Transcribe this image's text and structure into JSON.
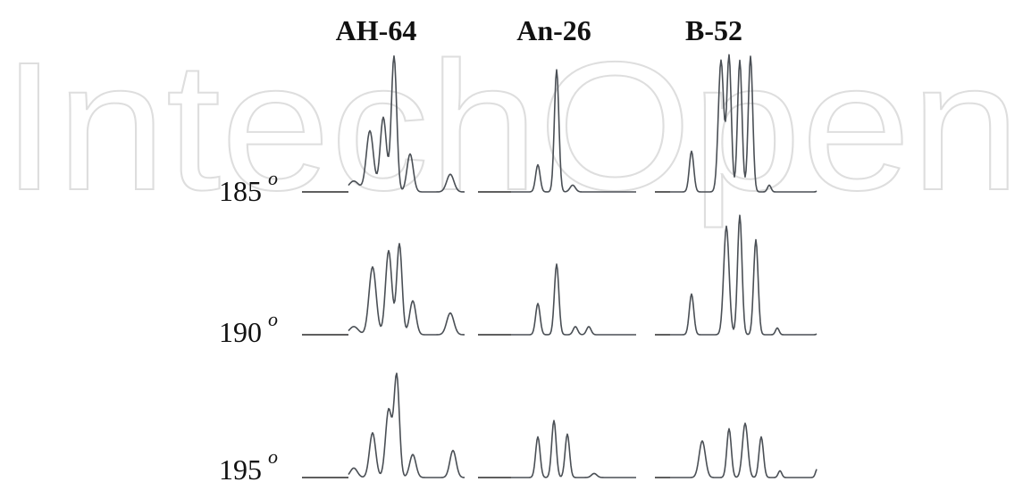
{
  "watermark": {
    "text": "IntechOpen",
    "color": "#e4e4e4"
  },
  "chart_data": {
    "type": "line",
    "columns": [
      "AH-64",
      "An-26",
      "B-52"
    ],
    "rows": [
      {
        "angle": "185",
        "degree_mark": "o"
      },
      {
        "angle": "190",
        "degree_mark": "o"
      },
      {
        "angle": "195",
        "degree_mark": "o"
      }
    ],
    "axes_shown": false,
    "grid": false,
    "series": [
      {
        "row": 0,
        "column": 0,
        "peaks": [
          [
            2,
            0.08,
            6
          ],
          [
            8,
            0.45,
            4
          ],
          [
            13,
            0.55,
            3.5
          ],
          [
            17,
            1.0,
            3
          ],
          [
            23,
            0.28,
            3.5
          ],
          [
            38,
            0.13,
            4
          ]
        ]
      },
      {
        "row": 0,
        "column": 1,
        "peaks": [
          [
            10,
            0.2,
            2.5
          ],
          [
            17,
            0.9,
            2.5
          ],
          [
            23,
            0.05,
            3
          ]
        ]
      },
      {
        "row": 0,
        "column": 2,
        "peaks": [
          [
            8,
            0.3,
            2.5
          ],
          [
            19,
            0.97,
            3
          ],
          [
            22,
            1.0,
            2.5
          ],
          [
            26,
            0.97,
            2.5
          ],
          [
            30,
            1.0,
            2.5
          ],
          [
            37,
            0.05,
            2
          ],
          [
            56,
            0.05,
            2
          ]
        ]
      },
      {
        "row": 1,
        "column": 0,
        "peaks": [
          [
            2,
            0.06,
            5
          ],
          [
            9,
            0.5,
            4
          ],
          [
            15,
            0.62,
            3.5
          ],
          [
            19,
            0.67,
            3
          ],
          [
            24,
            0.25,
            3.5
          ],
          [
            38,
            0.16,
            4
          ]
        ]
      },
      {
        "row": 1,
        "column": 1,
        "peaks": [
          [
            10,
            0.23,
            2.5
          ],
          [
            17,
            0.52,
            2.5
          ],
          [
            24,
            0.06,
            2.5
          ],
          [
            29,
            0.06,
            2.5
          ]
        ]
      },
      {
        "row": 1,
        "column": 2,
        "peaks": [
          [
            8,
            0.3,
            2.5
          ],
          [
            21,
            0.8,
            3
          ],
          [
            26,
            0.88,
            2.5
          ],
          [
            32,
            0.7,
            2.5
          ],
          [
            40,
            0.05,
            2
          ],
          [
            56,
            0.05,
            2
          ]
        ]
      },
      {
        "row": 2,
        "column": 0,
        "peaks": [
          [
            2,
            0.07,
            4
          ],
          [
            9,
            0.33,
            3.5
          ],
          [
            15,
            0.5,
            3.5
          ],
          [
            18,
            0.75,
            3
          ],
          [
            24,
            0.17,
            3.5
          ],
          [
            39,
            0.2,
            3.5
          ]
        ]
      },
      {
        "row": 2,
        "column": 1,
        "peaks": [
          [
            10,
            0.3,
            2.5
          ],
          [
            16,
            0.42,
            2.5
          ],
          [
            21,
            0.32,
            2.5
          ],
          [
            31,
            0.03,
            3
          ]
        ]
      },
      {
        "row": 2,
        "column": 2,
        "peaks": [
          [
            12,
            0.27,
            3.5
          ],
          [
            22,
            0.36,
            2.5
          ],
          [
            28,
            0.4,
            3
          ],
          [
            34,
            0.3,
            2.5
          ],
          [
            41,
            0.05,
            2
          ],
          [
            55,
            0.07,
            2
          ]
        ]
      }
    ]
  }
}
